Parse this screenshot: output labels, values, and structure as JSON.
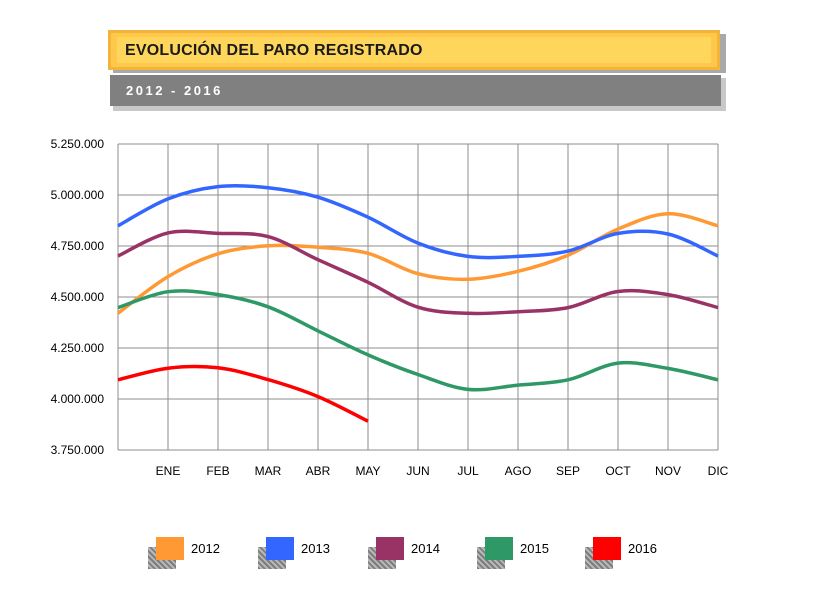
{
  "header": {
    "title": "EVOLUCIÓN DEL PARO REGISTRADO",
    "subtitle": "2012 - 2016"
  },
  "chart_data": {
    "type": "line",
    "title": "EVOLUCIÓN DEL PARO REGISTRADO",
    "subtitle": "2012 - 2016",
    "xlabel": "",
    "ylabel": "",
    "categories": [
      "",
      "ENE",
      "FEB",
      "MAR",
      "ABR",
      "MAY",
      "JUN",
      "JUL",
      "AGO",
      "SEP",
      "OCT",
      "NOV",
      "DIC"
    ],
    "x_tick_labels": [
      "ENE",
      "FEB",
      "MAR",
      "ABR",
      "MAY",
      "JUN",
      "JUL",
      "AGO",
      "SEP",
      "OCT",
      "NOV",
      "DIC"
    ],
    "y_tick_values": [
      3750000,
      4000000,
      4250000,
      4500000,
      4750000,
      5000000,
      5250000
    ],
    "y_tick_labels": [
      "3.750.000",
      "4.000.000",
      "4.250.000",
      "4.500.000",
      "4.750.000",
      "5.000.000",
      "5.250.000"
    ],
    "ylim": [
      3750000,
      5250000
    ],
    "grid": true,
    "legend_position": "bottom",
    "series": [
      {
        "name": "2012",
        "color": "#ff9933",
        "values": [
          4420000,
          4600000,
          4712000,
          4751000,
          4744000,
          4714000,
          4614000,
          4587000,
          4626000,
          4705000,
          4833000,
          4908000,
          4849000
        ]
      },
      {
        "name": "2013",
        "color": "#3366ff",
        "values": [
          4849000,
          4981000,
          5041000,
          5036000,
          4989000,
          4891000,
          4764000,
          4699000,
          4699000,
          4725000,
          4812000,
          4809000,
          4701000
        ]
      },
      {
        "name": "2014",
        "color": "#993366",
        "values": [
          4701000,
          4814000,
          4812000,
          4796000,
          4683000,
          4572000,
          4450000,
          4420000,
          4428000,
          4448000,
          4527000,
          4512000,
          4448000
        ]
      },
      {
        "name": "2015",
        "color": "#2e9966",
        "values": [
          4448000,
          4526000,
          4512000,
          4452000,
          4334000,
          4216000,
          4120000,
          4047000,
          4068000,
          4094000,
          4176000,
          4150000,
          4094000
        ]
      },
      {
        "name": "2016",
        "color": "#ff0000",
        "values": [
          4094000,
          4151000,
          4153000,
          4095000,
          4012000,
          3891000,
          null,
          null,
          null,
          null,
          null,
          null,
          null
        ]
      }
    ]
  }
}
